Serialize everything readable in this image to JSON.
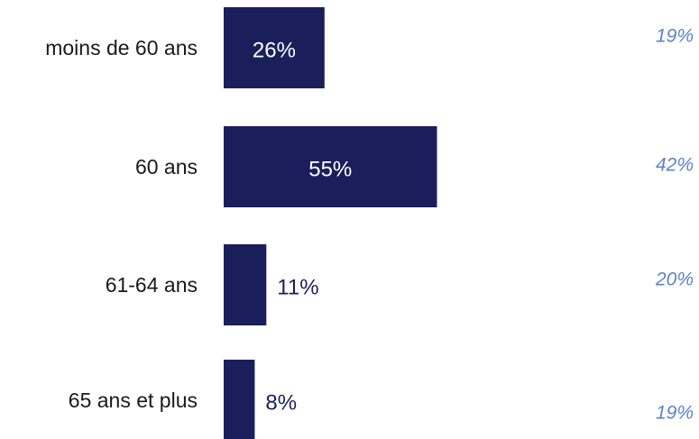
{
  "chart_data": {
    "type": "bar",
    "orientation": "horizontal",
    "categories": [
      "moins de 60 ans",
      "60 ans",
      "61-64 ans",
      "65 ans et plus"
    ],
    "series": [
      {
        "values": [
          26,
          55,
          11,
          8
        ],
        "labels": [
          "26%",
          "55%",
          "11%",
          "8%"
        ],
        "color": "#1a1f5c"
      }
    ],
    "comparison_values": [
      19,
      42,
      20,
      19
    ],
    "comparison_labels": [
      "19%",
      "42%",
      "20%",
      "19%"
    ],
    "comparison_color": "#5b83c6",
    "xlim": [
      0,
      100
    ],
    "grid": false,
    "legend": "none",
    "title": "",
    "xlabel": "",
    "ylabel": ""
  }
}
